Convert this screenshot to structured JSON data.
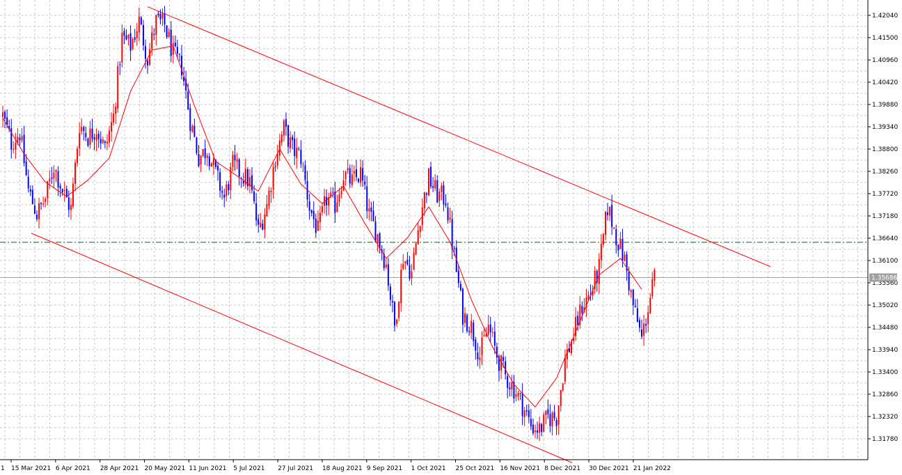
{
  "chart_data": {
    "type": "candlestick",
    "instrument_note": "",
    "colors": {
      "bull": "#ff0000",
      "bear": "#0000ff",
      "ma": "#ff0000",
      "channel": "#ff0000",
      "level": "#006400",
      "grid": "#c8c8c8",
      "price_line": "#a0a0a0",
      "price_badge": "#a0a0a0",
      "axis": "#000000"
    },
    "ylim": [
      1.3125,
      1.4223
    ],
    "y_ticks": [
      "1.42040",
      "1.41500",
      "1.40960",
      "1.40420",
      "1.39880",
      "1.39340",
      "1.38800",
      "1.38260",
      "1.37720",
      "1.37180",
      "1.36640",
      "1.36100",
      "1.35560",
      "1.35020",
      "1.34480",
      "1.33940",
      "1.33400",
      "1.32860",
      "1.32320",
      "1.31780"
    ],
    "x_ticks": [
      "15 Mar 2021",
      "6 Apr 2021",
      "28 Apr 2021",
      "20 May 2021",
      "11 Jun 2021",
      "5 Jul 2021",
      "27 Jul 2021",
      "18 Aug 2021",
      "9 Sep 2021",
      "1 Oct 2021",
      "25 Oct 2021",
      "16 Nov 2021",
      "8 Dec 2021",
      "30 Dec 2021",
      "21 Jan 2022"
    ],
    "x_tick_first_fragment": "1",
    "grid": true,
    "current_price": "1.35686",
    "horizontal_level": 1.3654,
    "moving_average_anchors": [
      [
        0,
        1.3955
      ],
      [
        10,
        1.3868
      ],
      [
        20,
        1.38
      ],
      [
        30,
        1.3765
      ],
      [
        40,
        1.3805
      ],
      [
        50,
        1.3858
      ],
      [
        60,
        1.402
      ],
      [
        70,
        1.412
      ],
      [
        80,
        1.413
      ],
      [
        90,
        1.3985
      ],
      [
        100,
        1.385
      ],
      [
        110,
        1.3815
      ],
      [
        120,
        1.3778
      ],
      [
        130,
        1.388
      ],
      [
        140,
        1.3795
      ],
      [
        150,
        1.3748
      ],
      [
        160,
        1.379
      ],
      [
        170,
        1.37
      ],
      [
        180,
        1.3615
      ],
      [
        190,
        1.3665
      ],
      [
        200,
        1.374
      ],
      [
        210,
        1.3655
      ],
      [
        220,
        1.3515
      ],
      [
        230,
        1.34
      ],
      [
        240,
        1.331
      ],
      [
        250,
        1.3255
      ],
      [
        260,
        1.3325
      ],
      [
        270,
        1.345
      ],
      [
        280,
        1.3575
      ],
      [
        290,
        1.3615
      ],
      [
        300,
        1.354
      ]
    ],
    "price_anchors": [
      [
        0,
        1.396
      ],
      [
        4,
        1.3895
      ],
      [
        8,
        1.392
      ],
      [
        12,
        1.378
      ],
      [
        16,
        1.3722
      ],
      [
        20,
        1.376
      ],
      [
        24,
        1.384
      ],
      [
        28,
        1.378
      ],
      [
        32,
        1.3735
      ],
      [
        36,
        1.394
      ],
      [
        40,
        1.391
      ],
      [
        44,
        1.393
      ],
      [
        48,
        1.388
      ],
      [
        52,
        1.396
      ],
      [
        56,
        1.415
      ],
      [
        60,
        1.413
      ],
      [
        64,
        1.419
      ],
      [
        68,
        1.41
      ],
      [
        72,
        1.419
      ],
      [
        76,
        1.418
      ],
      [
        80,
        1.411
      ],
      [
        84,
        1.408
      ],
      [
        88,
        1.395
      ],
      [
        92,
        1.386
      ],
      [
        96,
        1.388
      ],
      [
        100,
        1.382
      ],
      [
        104,
        1.376
      ],
      [
        108,
        1.384
      ],
      [
        112,
        1.382
      ],
      [
        116,
        1.38
      ],
      [
        120,
        1.368
      ],
      [
        124,
        1.3745
      ],
      [
        128,
        1.386
      ],
      [
        132,
        1.393
      ],
      [
        136,
        1.388
      ],
      [
        140,
        1.386
      ],
      [
        144,
        1.374
      ],
      [
        148,
        1.368
      ],
      [
        152,
        1.376
      ],
      [
        156,
        1.3745
      ],
      [
        160,
        1.382
      ],
      [
        164,
        1.38
      ],
      [
        168,
        1.382
      ],
      [
        172,
        1.372
      ],
      [
        176,
        1.367
      ],
      [
        180,
        1.36
      ],
      [
        184,
        1.345
      ],
      [
        188,
        1.362
      ],
      [
        192,
        1.358
      ],
      [
        196,
        1.372
      ],
      [
        200,
        1.381
      ],
      [
        204,
        1.377
      ],
      [
        208,
        1.376
      ],
      [
        212,
        1.362
      ],
      [
        216,
        1.348
      ],
      [
        220,
        1.345
      ],
      [
        224,
        1.338
      ],
      [
        228,
        1.345
      ],
      [
        232,
        1.338
      ],
      [
        236,
        1.333
      ],
      [
        240,
        1.33
      ],
      [
        244,
        1.326
      ],
      [
        248,
        1.321
      ],
      [
        252,
        1.32
      ],
      [
        256,
        1.323
      ],
      [
        260,
        1.323
      ],
      [
        264,
        1.337
      ],
      [
        268,
        1.343
      ],
      [
        272,
        1.35
      ],
      [
        276,
        1.353
      ],
      [
        280,
        1.359
      ],
      [
        284,
        1.374
      ],
      [
        288,
        1.367
      ],
      [
        292,
        1.361
      ],
      [
        296,
        1.35
      ],
      [
        300,
        1.342
      ],
      [
        304,
        1.352
      ],
      [
        306,
        1.3569
      ]
    ],
    "channel": {
      "upper": [
        [
          212,
          1.4225
        ],
        [
          1107,
          1.3595
        ]
      ],
      "lower": [
        [
          45,
          1.3676
        ],
        [
          822,
          1.312
        ]
      ]
    }
  }
}
